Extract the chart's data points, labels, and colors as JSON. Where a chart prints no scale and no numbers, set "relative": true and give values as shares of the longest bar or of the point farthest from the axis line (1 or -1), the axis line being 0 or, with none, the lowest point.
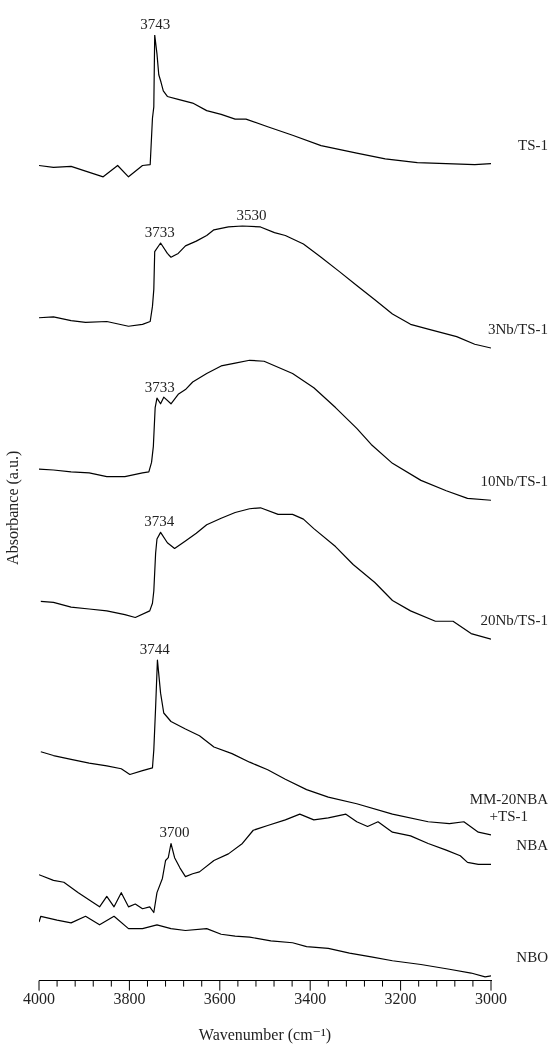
{
  "chart_data": {
    "type": "line",
    "relative": true,
    "xlabel": "Wavenumber (cm⁻¹)",
    "ylabel": "Absorbance (a.u.)",
    "xlim": [
      4000,
      3000
    ],
    "xticks": [
      4000,
      {
        "value": 3960,
        "label": null
      },
      {
        "value": 3920,
        "label": null
      },
      {
        "value": 3880,
        "label": null
      },
      {
        "value": 3840,
        "label": null
      },
      3800,
      {
        "value": 3760,
        "label": null
      },
      {
        "value": 3720,
        "label": null
      },
      {
        "value": 3680,
        "label": null
      },
      {
        "value": 3640,
        "label": null
      },
      3600,
      {
        "value": 3560,
        "label": null
      },
      {
        "value": 3520,
        "label": null
      },
      {
        "value": 3480,
        "label": null
      },
      {
        "value": 3440,
        "label": null
      },
      3400,
      {
        "value": 3360,
        "label": null
      },
      {
        "value": 3320,
        "label": null
      },
      {
        "value": 3280,
        "label": null
      },
      {
        "value": 3240,
        "label": null
      },
      3200,
      {
        "value": 3160,
        "label": null
      },
      {
        "value": 3120,
        "label": null
      },
      {
        "value": 3080,
        "label": null
      },
      {
        "value": 3040,
        "label": null
      },
      3000
    ],
    "grid": false,
    "legend": false,
    "series": [
      {
        "name": "TS-1",
        "color": "#000000",
        "x": [
          4000,
          3968,
          3929,
          3897,
          3858,
          3826,
          3802,
          3771,
          3754,
          3749,
          3746,
          3744,
          3739,
          3735,
          3730,
          3725,
          3716,
          3692,
          3660,
          3629,
          3597,
          3566,
          3542,
          3494,
          3439,
          3376,
          3297,
          3234,
          3163,
          3099,
          3036,
          3000
        ],
        "values": [
          0.862,
          0.86,
          0.861,
          0.856,
          0.85,
          0.862,
          0.85,
          0.862,
          0.863,
          0.912,
          0.924,
          1,
          0.98,
          0.958,
          0.95,
          0.941,
          0.935,
          0.932,
          0.928,
          0.92,
          0.916,
          0.911,
          0.911,
          0.903,
          0.894,
          0.883,
          0.875,
          0.869,
          0.865,
          0.864,
          0.863,
          0.864
        ]
      },
      {
        "name": "3Nb/TS-1",
        "color": "#000000",
        "x": [
          4000,
          3968,
          3929,
          3897,
          3850,
          3802,
          3771,
          3754,
          3749,
          3746,
          3744,
          3731,
          3716,
          3708,
          3692,
          3676,
          3652,
          3629,
          3613,
          3581,
          3550,
          3510,
          3479,
          3455,
          3415,
          3376,
          3336,
          3297,
          3257,
          3218,
          3178,
          3139,
          3076,
          3036,
          3000
        ],
        "values": [
          0.701,
          0.702,
          0.698,
          0.696,
          0.697,
          0.692,
          0.694,
          0.697,
          0.713,
          0.731,
          0.771,
          0.78,
          0.769,
          0.765,
          0.769,
          0.777,
          0.782,
          0.788,
          0.794,
          0.797,
          0.798,
          0.797,
          0.791,
          0.788,
          0.779,
          0.765,
          0.75,
          0.735,
          0.72,
          0.705,
          0.694,
          0.689,
          0.681,
          0.673,
          0.669
        ]
      },
      {
        "name": "10Nb/TS-1",
        "color": "#000000",
        "x": [
          4000,
          3968,
          3929,
          3889,
          3850,
          3810,
          3771,
          3757,
          3751,
          3747,
          3743,
          3739,
          3731,
          3724,
          3708,
          3692,
          3676,
          3660,
          3629,
          3597,
          3566,
          3534,
          3502,
          3439,
          3392,
          3344,
          3297,
          3265,
          3218,
          3155,
          3099,
          3052,
          3000
        ],
        "values": [
          0.541,
          0.54,
          0.538,
          0.537,
          0.533,
          0.533,
          0.537,
          0.538,
          0.548,
          0.565,
          0.606,
          0.616,
          0.61,
          0.617,
          0.61,
          0.62,
          0.625,
          0.633,
          0.642,
          0.65,
          0.653,
          0.656,
          0.655,
          0.642,
          0.627,
          0.606,
          0.584,
          0.567,
          0.547,
          0.529,
          0.518,
          0.51,
          0.508
        ]
      },
      {
        "name": "20Nb/TS-1",
        "color": "#000000",
        "x": [
          3996,
          3968,
          3929,
          3889,
          3850,
          3810,
          3787,
          3755,
          3749,
          3746,
          3742,
          3739,
          3731,
          3716,
          3700,
          3676,
          3652,
          3629,
          3597,
          3566,
          3534,
          3510,
          3471,
          3439,
          3415,
          3392,
          3344,
          3305,
          3257,
          3218,
          3178,
          3123,
          3084,
          3044,
          3000
        ],
        "values": [
          0.401,
          0.4,
          0.395,
          0.393,
          0.391,
          0.387,
          0.384,
          0.391,
          0.399,
          0.412,
          0.452,
          0.467,
          0.474,
          0.463,
          0.457,
          0.465,
          0.473,
          0.482,
          0.489,
          0.495,
          0.499,
          0.5,
          0.493,
          0.493,
          0.488,
          0.478,
          0.459,
          0.44,
          0.421,
          0.402,
          0.391,
          0.38,
          0.38,
          0.367,
          0.361
        ]
      },
      {
        "name": "MM-20NBA +TS-1",
        "color": "#000000",
        "x": [
          3996,
          3968,
          3929,
          3889,
          3850,
          3818,
          3799,
          3771,
          3749,
          3746,
          3742,
          3738,
          3731,
          3724,
          3708,
          3676,
          3645,
          3613,
          3573,
          3534,
          3494,
          3455,
          3408,
          3360,
          3297,
          3218,
          3139,
          3092,
          3060,
          3028,
          3000
        ],
        "values": [
          0.242,
          0.238,
          0.234,
          0.23,
          0.227,
          0.224,
          0.218,
          0.222,
          0.225,
          0.244,
          0.289,
          0.339,
          0.304,
          0.283,
          0.274,
          0.266,
          0.259,
          0.247,
          0.24,
          0.231,
          0.223,
          0.213,
          0.202,
          0.194,
          0.187,
          0.176,
          0.168,
          0.166,
          0.168,
          0.157,
          0.154
        ]
      },
      {
        "name": "NBA",
        "color": "#000000",
        "x": [
          4000,
          3968,
          3945,
          3913,
          3882,
          3866,
          3850,
          3834,
          3818,
          3802,
          3787,
          3771,
          3755,
          3746,
          3739,
          3727,
          3720,
          3714,
          3708,
          3700,
          3688,
          3676,
          3660,
          3645,
          3613,
          3581,
          3550,
          3526,
          3494,
          3455,
          3423,
          3392,
          3360,
          3321,
          3297,
          3273,
          3250,
          3218,
          3178,
          3139,
          3099,
          3068,
          3052,
          3028,
          3000
        ],
        "values": [
          0.112,
          0.106,
          0.104,
          0.093,
          0.083,
          0.078,
          0.089,
          0.078,
          0.093,
          0.078,
          0.081,
          0.076,
          0.078,
          0.072,
          0.093,
          0.108,
          0.127,
          0.13,
          0.145,
          0.13,
          0.119,
          0.11,
          0.113,
          0.115,
          0.127,
          0.134,
          0.145,
          0.159,
          0.164,
          0.17,
          0.176,
          0.17,
          0.172,
          0.176,
          0.168,
          0.163,
          0.168,
          0.157,
          0.153,
          0.145,
          0.138,
          0.132,
          0.125,
          0.123,
          0.123
        ]
      },
      {
        "name": "NBO",
        "color": "#000000",
        "x": [
          4000,
          3996,
          3960,
          3929,
          3897,
          3866,
          3834,
          3802,
          3771,
          3739,
          3708,
          3676,
          3629,
          3597,
          3566,
          3534,
          3487,
          3439,
          3408,
          3360,
          3313,
          3265,
          3218,
          3155,
          3092,
          3044,
          3013,
          3000
        ],
        "values": [
          0.062,
          0.068,
          0.064,
          0.061,
          0.068,
          0.059,
          0.068,
          0.055,
          0.055,
          0.059,
          0.055,
          0.053,
          0.055,
          0.049,
          0.047,
          0.046,
          0.042,
          0.04,
          0.036,
          0.034,
          0.029,
          0.025,
          0.021,
          0.017,
          0.012,
          0.008,
          0.004,
          0.005
        ]
      }
    ],
    "annotations": [
      {
        "text": "3743",
        "x": 3743,
        "y": 1
      },
      {
        "text": "3733",
        "x": 3733,
        "y": 0.78
      },
      {
        "text": "3530",
        "x": 3530,
        "y": 0.798
      },
      {
        "text": "3733",
        "x": 3733,
        "y": 0.616
      },
      {
        "text": "3734",
        "x": 3734,
        "y": 0.474
      },
      {
        "text": "3744",
        "x": 3744,
        "y": 0.339
      },
      {
        "text": "3700",
        "x": 3700,
        "y": 0.145
      }
    ]
  }
}
